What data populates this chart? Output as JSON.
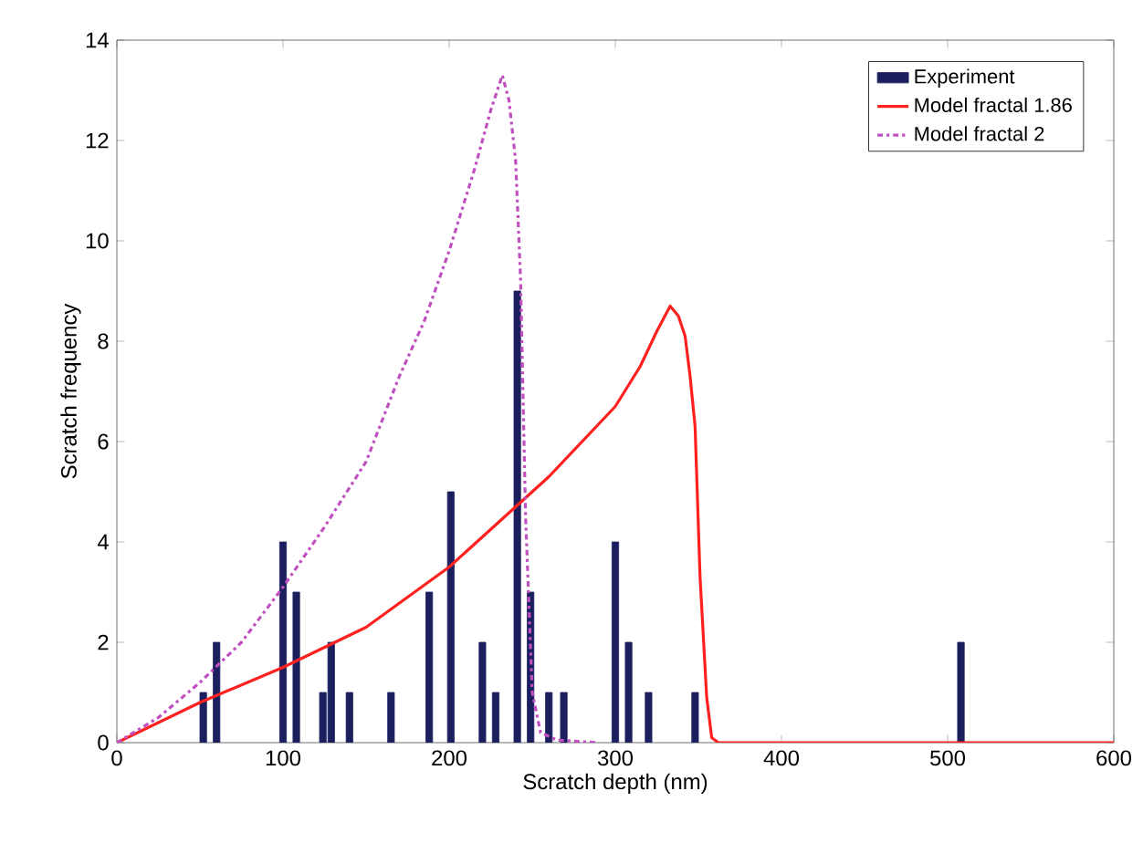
{
  "chart_data": {
    "type": "bar",
    "xlabel": "Scratch depth (nm)",
    "ylabel": "Scratch frequency",
    "xlim": [
      0,
      600
    ],
    "ylim": [
      0,
      14
    ],
    "xticks": [
      0,
      100,
      200,
      300,
      400,
      500,
      600
    ],
    "yticks": [
      0,
      2,
      4,
      6,
      8,
      10,
      12,
      14
    ],
    "legend": "top right",
    "grid": false,
    "series": [
      {
        "name": "Experiment",
        "color": "#1c1f5e",
        "x": [
          52,
          60,
          100,
          108,
          124,
          129,
          140,
          165,
          188,
          201,
          220,
          228,
          241,
          249,
          260,
          269,
          300,
          308,
          320,
          348,
          508
        ],
        "values": [
          1,
          2,
          4,
          3,
          1,
          2,
          1,
          1,
          3,
          5,
          2,
          1,
          9,
          3,
          1,
          1,
          4,
          2,
          1,
          1,
          2
        ]
      },
      {
        "name": "Model fractal 1.86",
        "type": "line",
        "color": "#ff2020",
        "line_style": "solid",
        "x": [
          0,
          25,
          50,
          75,
          100,
          125,
          150,
          175,
          200,
          220,
          240,
          260,
          280,
          300,
          315,
          325,
          333,
          338,
          342,
          345,
          348,
          351,
          355,
          358,
          362,
          400,
          500,
          600
        ],
        "values": [
          0,
          0.4,
          0.8,
          1.15,
          1.5,
          1.9,
          2.3,
          2.9,
          3.5,
          4.1,
          4.7,
          5.3,
          6.0,
          6.7,
          7.5,
          8.2,
          8.7,
          8.5,
          8.1,
          7.3,
          6.3,
          3.3,
          0.9,
          0.1,
          0,
          0,
          0,
          0
        ]
      },
      {
        "name": "Model fractal 2",
        "type": "line",
        "color": "#c050c0",
        "line_style": "dashdot",
        "x": [
          0,
          25,
          50,
          75,
          100,
          125,
          150,
          170,
          185,
          200,
          215,
          225,
          232,
          236,
          240,
          243,
          246,
          250,
          255,
          265,
          290
        ],
        "values": [
          0,
          0.5,
          1.2,
          2.0,
          3.1,
          4.3,
          5.6,
          7.3,
          8.4,
          9.8,
          11.4,
          12.6,
          13.3,
          12.8,
          11.6,
          9.2,
          4.5,
          1.0,
          0.2,
          0.05,
          0
        ]
      }
    ]
  }
}
